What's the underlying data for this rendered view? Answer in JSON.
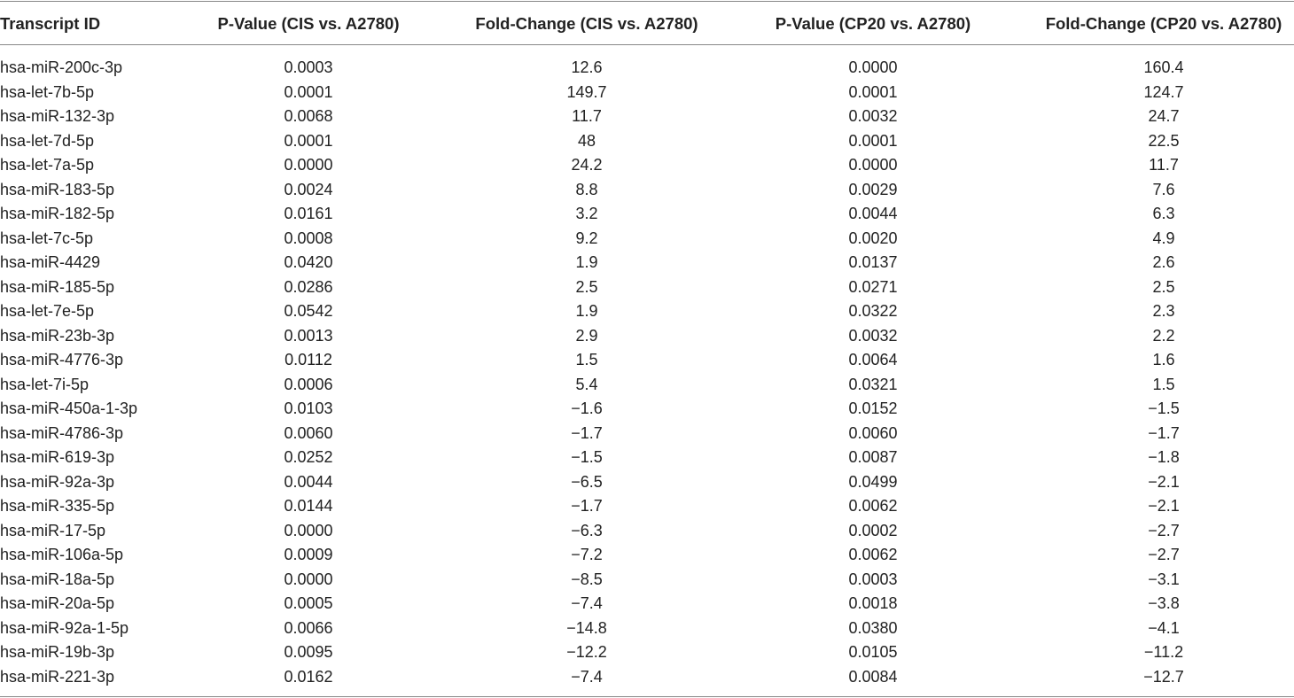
{
  "table": {
    "header": [
      "Transcript ID",
      "P-Value (CIS vs. A2780)",
      "Fold-Change (CIS vs. A2780)",
      "P-Value (CP20 vs. A2780)",
      "Fold-Change (CP20 vs. A2780)"
    ],
    "rows": [
      [
        "hsa-miR-200c-3p",
        "0.0003",
        "12.6",
        "0.0000",
        "160.4"
      ],
      [
        "hsa-let-7b-5p",
        "0.0001",
        "149.7",
        "0.0001",
        "124.7"
      ],
      [
        "hsa-miR-132-3p",
        "0.0068",
        "11.7",
        "0.0032",
        "24.7"
      ],
      [
        "hsa-let-7d-5p",
        "0.0001",
        "48",
        "0.0001",
        "22.5"
      ],
      [
        "hsa-let-7a-5p",
        "0.0000",
        "24.2",
        "0.0000",
        "11.7"
      ],
      [
        "hsa-miR-183-5p",
        "0.0024",
        "8.8",
        "0.0029",
        "7.6"
      ],
      [
        "hsa-miR-182-5p",
        "0.0161",
        "3.2",
        "0.0044",
        "6.3"
      ],
      [
        "hsa-let-7c-5p",
        "0.0008",
        "9.2",
        "0.0020",
        "4.9"
      ],
      [
        "hsa-miR-4429",
        "0.0420",
        "1.9",
        "0.0137",
        "2.6"
      ],
      [
        "hsa-miR-185-5p",
        "0.0286",
        "2.5",
        "0.0271",
        "2.5"
      ],
      [
        "hsa-let-7e-5p",
        "0.0542",
        "1.9",
        "0.0322",
        "2.3"
      ],
      [
        "hsa-miR-23b-3p",
        "0.0013",
        "2.9",
        "0.0032",
        "2.2"
      ],
      [
        "hsa-miR-4776-3p",
        "0.0112",
        "1.5",
        "0.0064",
        "1.6"
      ],
      [
        "hsa-let-7i-5p",
        "0.0006",
        "5.4",
        "0.0321",
        "1.5"
      ],
      [
        "hsa-miR-450a-1-3p",
        "0.0103",
        "−1.6",
        "0.0152",
        "−1.5"
      ],
      [
        "hsa-miR-4786-3p",
        "0.0060",
        "−1.7",
        "0.0060",
        "−1.7"
      ],
      [
        "hsa-miR-619-3p",
        "0.0252",
        "−1.5",
        "0.0087",
        "−1.8"
      ],
      [
        "hsa-miR-92a-3p",
        "0.0044",
        "−6.5",
        "0.0499",
        "−2.1"
      ],
      [
        "hsa-miR-335-5p",
        "0.0144",
        "−1.7",
        "0.0062",
        "−2.1"
      ],
      [
        "hsa-miR-17-5p",
        "0.0000",
        "−6.3",
        "0.0002",
        "−2.7"
      ],
      [
        "hsa-miR-106a-5p",
        "0.0009",
        "−7.2",
        "0.0062",
        "−2.7"
      ],
      [
        "hsa-miR-18a-5p",
        "0.0000",
        "−8.5",
        "0.0003",
        "−3.1"
      ],
      [
        "hsa-miR-20a-5p",
        "0.0005",
        "−7.4",
        "0.0018",
        "−3.8"
      ],
      [
        "hsa-miR-92a-1-5p",
        "0.0066",
        "−14.8",
        "0.0380",
        "−4.1"
      ],
      [
        "hsa-miR-19b-3p",
        "0.0095",
        "−12.2",
        "0.0105",
        "−11.2"
      ],
      [
        "hsa-miR-221-3p",
        "0.0162",
        "−7.4",
        "0.0084",
        "−12.7"
      ]
    ]
  }
}
